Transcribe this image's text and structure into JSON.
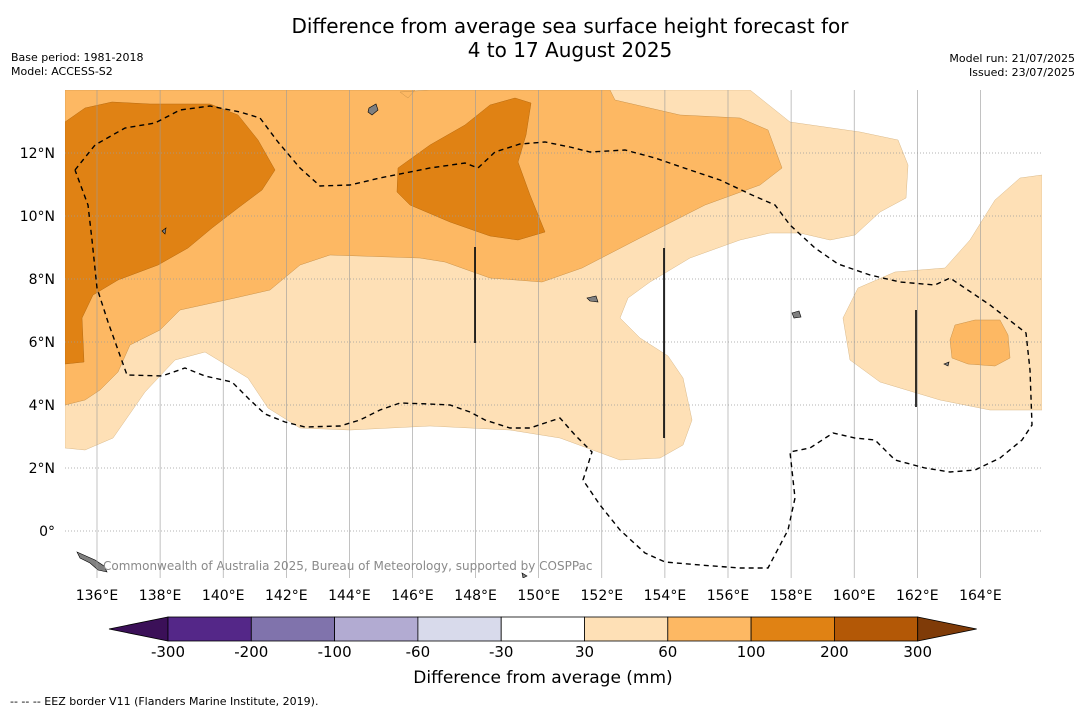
{
  "title": {
    "line1": "Difference from average sea surface height forecast for",
    "line2": "4 to 17 August 2025"
  },
  "meta": {
    "base_period": "Base period: 1981-2018",
    "model": "Model: ACCESS-S2",
    "model_run": "Model run: 21/07/2025",
    "issued": "Issued: 23/07/2025"
  },
  "map": {
    "lon_ticks": [
      "136°E",
      "138°E",
      "140°E",
      "142°E",
      "144°E",
      "146°E",
      "148°E",
      "150°E",
      "152°E",
      "154°E",
      "156°E",
      "158°E",
      "160°E",
      "162°E",
      "164°E"
    ],
    "lat_ticks": [
      "12°N",
      "10°N",
      "8°N",
      "6°N",
      "4°N",
      "2°N",
      "0°"
    ],
    "credit": "Commonwealth of Australia 2025, Bureau of Meteorology, supported by COSPPac"
  },
  "colorbar": {
    "title": "Difference from average (mm)",
    "labels": [
      "-300",
      "-200",
      "-100",
      "-60",
      "-30",
      "30",
      "60",
      "100",
      "200",
      "300"
    ],
    "colors": [
      "#3b1058",
      "#542788",
      "#8073ac",
      "#b2abd2",
      "#d8daeb",
      "#ffffff",
      "#fee0b6",
      "#fdb863",
      "#e08214",
      "#b35806",
      "#7f3b08"
    ]
  },
  "footer": "-- -- -- EEZ border V11 (Flanders Marine Institute, 2019)."
}
